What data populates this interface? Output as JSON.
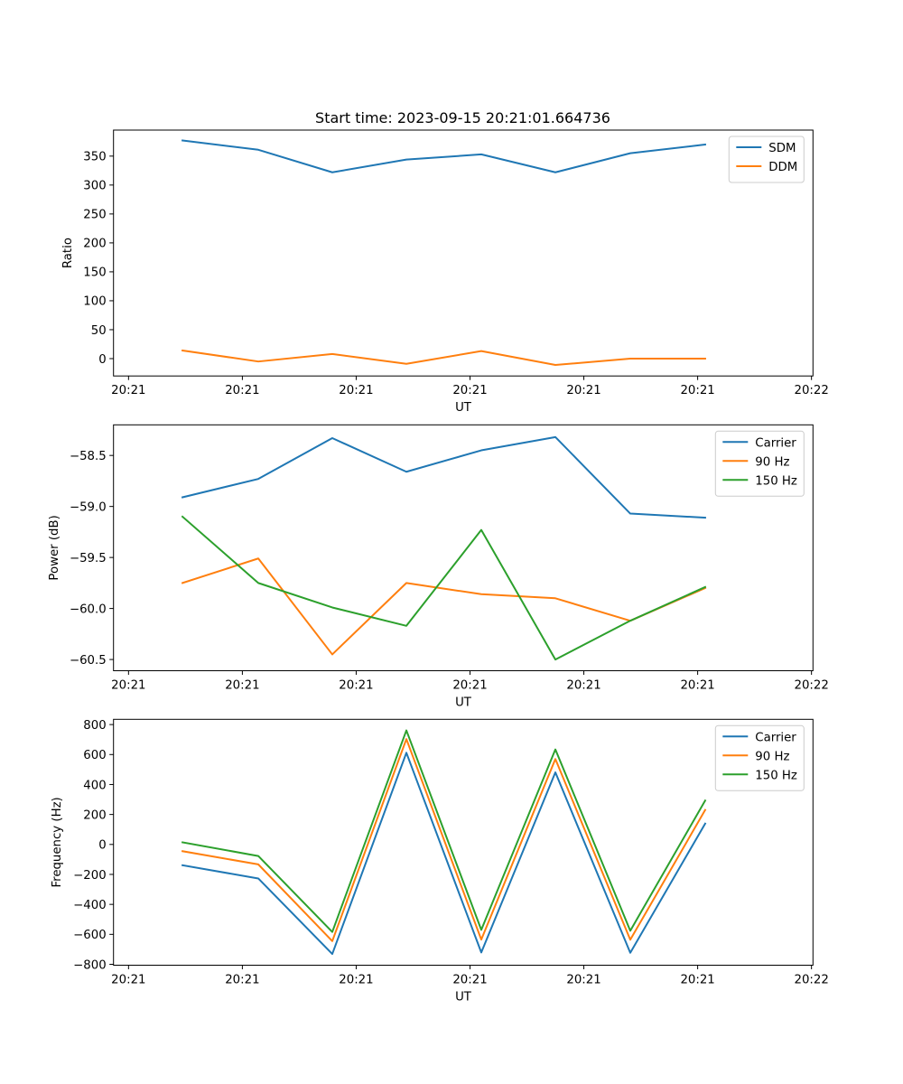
{
  "figure": {
    "title": "Start time: 2023-09-15 20:21:01.664736"
  },
  "chart_data": [
    {
      "type": "line",
      "title": "Start time: 2023-09-15 20:21:01.664736",
      "xlabel": "UT",
      "ylabel": "Ratio",
      "x_units": "seconds after 20:21:00",
      "x": [
        4.74,
        11.4,
        17.9,
        24.41,
        30.99,
        37.5,
        44.08,
        50.66
      ],
      "xlim": [
        -1.32,
        60.13
      ],
      "xticks": [
        0,
        10,
        20,
        30,
        40,
        50,
        60
      ],
      "xtick_labels": [
        "20:21",
        "20:21",
        "20:21",
        "20:21",
        "20:21",
        "20:21",
        "20:22"
      ],
      "ylim": [
        -30,
        395
      ],
      "yticks": [
        0,
        50,
        100,
        150,
        200,
        250,
        300,
        350
      ],
      "ytick_labels": [
        "0",
        "50",
        "100",
        "150",
        "200",
        "250",
        "300",
        "350"
      ],
      "grid": false,
      "legend": "top-right",
      "series": [
        {
          "name": "SDM",
          "color": "#1f77b4",
          "values": [
            377,
            361,
            322,
            344,
            353,
            322,
            355,
            370
          ]
        },
        {
          "name": "DDM",
          "color": "#ff7f0e",
          "values": [
            14,
            -5,
            8,
            -9,
            13,
            -11,
            0,
            0
          ]
        }
      ]
    },
    {
      "type": "line",
      "title": "",
      "xlabel": "UT",
      "ylabel": "Power (dB)",
      "x_units": "seconds after 20:21:00",
      "x": [
        4.74,
        11.4,
        17.9,
        24.41,
        30.99,
        37.5,
        44.08,
        50.66
      ],
      "xlim": [
        -1.32,
        60.13
      ],
      "xticks": [
        0,
        10,
        20,
        30,
        40,
        50,
        60
      ],
      "xtick_labels": [
        "20:21",
        "20:21",
        "20:21",
        "20:21",
        "20:21",
        "20:21",
        "20:22"
      ],
      "ylim": [
        -60.61,
        -58.2
      ],
      "yticks": [
        -60.5,
        -60.0,
        -59.5,
        -59.0,
        -58.5
      ],
      "ytick_labels": [
        "−60.5",
        "−60.0",
        "−59.5",
        "−59.0",
        "−58.5"
      ],
      "grid": false,
      "legend": "top-right",
      "series": [
        {
          "name": "Carrier",
          "color": "#1f77b4",
          "values": [
            -58.91,
            -58.73,
            -58.33,
            -58.66,
            -58.45,
            -58.32,
            -59.07,
            -59.11
          ]
        },
        {
          "name": "90 Hz",
          "color": "#ff7f0e",
          "values": [
            -59.75,
            -59.51,
            -60.45,
            -59.75,
            -59.86,
            -59.9,
            -60.12,
            -59.8
          ]
        },
        {
          "name": "150 Hz",
          "color": "#2ca02c",
          "values": [
            -59.1,
            -59.75,
            -59.99,
            -60.17,
            -59.23,
            -60.5,
            -60.12,
            -59.79
          ]
        }
      ]
    },
    {
      "type": "line",
      "title": "",
      "xlabel": "UT",
      "ylabel": "Frequency (Hz)",
      "x_units": "seconds after 20:21:00",
      "x": [
        4.74,
        11.4,
        17.9,
        24.41,
        30.99,
        37.5,
        44.08,
        50.66
      ],
      "xlim": [
        -1.32,
        60.13
      ],
      "xticks": [
        0,
        10,
        20,
        30,
        40,
        50,
        60
      ],
      "xtick_labels": [
        "20:21",
        "20:21",
        "20:21",
        "20:21",
        "20:21",
        "20:21",
        "20:22"
      ],
      "ylim": [
        -806,
        835
      ],
      "yticks": [
        -800,
        -600,
        -400,
        -200,
        0,
        200,
        400,
        600,
        800
      ],
      "ytick_labels": [
        "−800",
        "−600",
        "−400",
        "−200",
        "0",
        "200",
        "400",
        "600",
        "800"
      ],
      "grid": false,
      "legend": "top-right",
      "series": [
        {
          "name": "Carrier",
          "color": "#1f77b4",
          "values": [
            -139,
            -227,
            -731,
            612,
            -721,
            481,
            -723,
            139
          ]
        },
        {
          "name": "90 Hz",
          "color": "#ff7f0e",
          "values": [
            -45,
            -133,
            -645,
            703,
            -635,
            570,
            -636,
            230
          ]
        },
        {
          "name": "150 Hz",
          "color": "#2ca02c",
          "values": [
            14,
            -77,
            -584,
            761,
            -570,
            634,
            -576,
            293
          ]
        }
      ]
    }
  ]
}
